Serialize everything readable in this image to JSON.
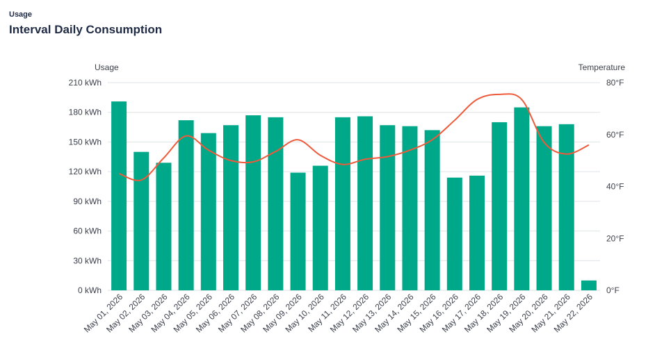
{
  "header": {
    "eyebrow": "Usage",
    "title": "Interval Daily Consumption"
  },
  "chart_data": {
    "type": "bar",
    "grid": true,
    "left_axis_title": "Usage",
    "right_axis_title": "Temperature",
    "categories": [
      "May 01, 2026",
      "May 02, 2026",
      "May 03, 2026",
      "May 04, 2026",
      "May 05, 2026",
      "May 06, 2026",
      "May 07, 2026",
      "May 08, 2026",
      "May 09, 2026",
      "May 10, 2026",
      "May 11, 2026",
      "May 12, 2026",
      "May 13, 2026",
      "May 14, 2026",
      "May 15, 2026",
      "May 16, 2026",
      "May 17, 2026",
      "May 18, 2026",
      "May 19, 2026",
      "May 20, 2026",
      "May 21, 2026",
      "May 22, 2026"
    ],
    "y_left": {
      "min": 0,
      "max": 210,
      "ticks": [
        "0 kWh",
        "30 kWh",
        "60 kWh",
        "90 kWh",
        "120 kWh",
        "150 kWh",
        "180 kWh",
        "210 kWh"
      ]
    },
    "y_right": {
      "min": 0,
      "max": 80,
      "ticks": [
        "0°F",
        "20°F",
        "40°F",
        "60°F",
        "80°F"
      ]
    },
    "series": [
      {
        "type": "bar",
        "axis": "left",
        "color": "#00a88a",
        "values": [
          191,
          140,
          129,
          172,
          159,
          167,
          177,
          175,
          119,
          126,
          175,
          176,
          167,
          166,
          162,
          114,
          116,
          170,
          185,
          166,
          168,
          10
        ]
      },
      {
        "type": "line",
        "axis": "right",
        "color": "#ee5a3a",
        "values": [
          45,
          42.5,
          51,
          59.5,
          54,
          50,
          49.5,
          53.5,
          58,
          52,
          48.5,
          50.5,
          51.5,
          54,
          58,
          65.5,
          73.5,
          75.5,
          73.5,
          57,
          52.5,
          56
        ]
      }
    ]
  }
}
